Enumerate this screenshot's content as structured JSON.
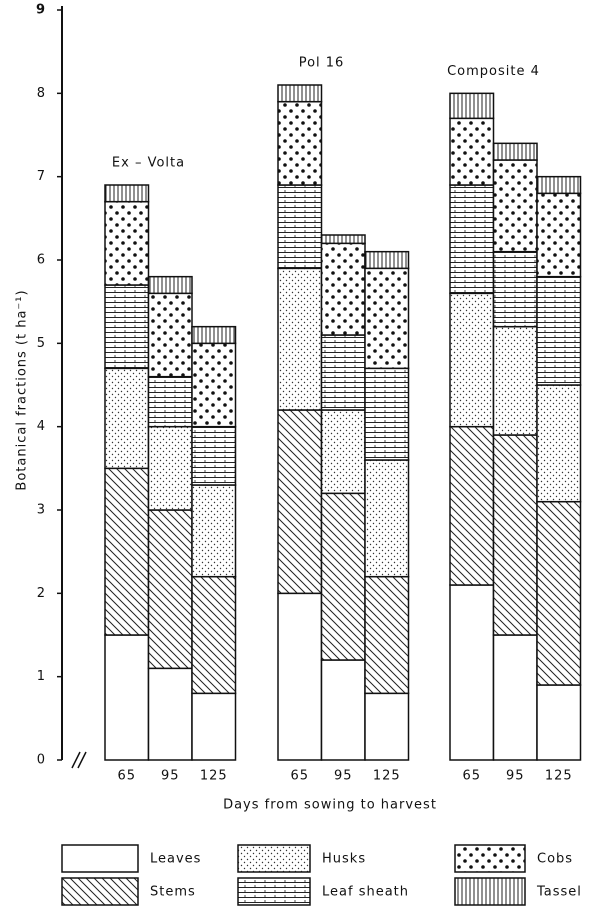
{
  "chart_data": {
    "type": "stacked-bar",
    "y_label": "Botanical fractions (t ha⁻¹)",
    "x_label": "Days from sowing to harvest",
    "groups": [
      "Ex – Volta",
      "Pol 16",
      "Composite 4"
    ],
    "categories": [
      "65",
      "95",
      "125",
      "65",
      "95",
      "125",
      "65",
      "95",
      "125"
    ],
    "ylim": [
      0,
      9
    ],
    "yticks": [
      0,
      1,
      2,
      3,
      4,
      5,
      6,
      7,
      8,
      9
    ],
    "series": [
      {
        "name": "Leaves",
        "color": "#ffffff",
        "pattern": "plain",
        "values": [
          1.5,
          1.1,
          0.8,
          2.0,
          1.2,
          0.8,
          2.1,
          1.5,
          0.9
        ]
      },
      {
        "name": "Stems",
        "color": "#ffffff",
        "pattern": "diagonal",
        "values": [
          2.0,
          1.9,
          1.4,
          2.2,
          2.0,
          1.4,
          1.9,
          2.4,
          2.2
        ]
      },
      {
        "name": "Husks",
        "color": "#ffffff",
        "pattern": "stipple",
        "values": [
          1.2,
          1.0,
          1.1,
          1.7,
          1.0,
          1.4,
          1.6,
          1.3,
          1.4
        ]
      },
      {
        "name": "Leaf sheath",
        "color": "#ffffff",
        "pattern": "grid",
        "values": [
          1.0,
          0.6,
          0.7,
          1.0,
          0.9,
          1.1,
          1.3,
          0.9,
          1.3
        ]
      },
      {
        "name": "Cobs",
        "color": "#ffffff",
        "pattern": "dots",
        "values": [
          1.0,
          1.0,
          1.0,
          1.0,
          1.1,
          1.2,
          0.8,
          1.1,
          1.0
        ]
      },
      {
        "name": "Tassel",
        "color": "#ffffff",
        "pattern": "vertical",
        "values": [
          0.2,
          0.2,
          0.2,
          0.2,
          0.1,
          0.2,
          0.3,
          0.2,
          0.2
        ]
      }
    ]
  }
}
